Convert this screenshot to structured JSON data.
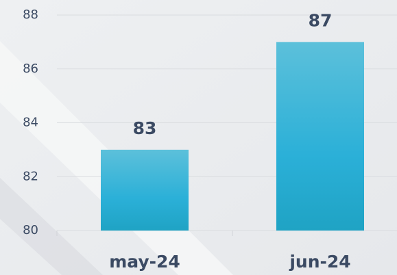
{
  "chart_data": {
    "type": "bar",
    "categories": [
      "may-24",
      "jun-24"
    ],
    "values": [
      83,
      87
    ],
    "color": "#2bb0d2",
    "ylim": [
      80,
      88
    ],
    "yticks": [
      80,
      82,
      84,
      86,
      88
    ],
    "grid": true
  }
}
